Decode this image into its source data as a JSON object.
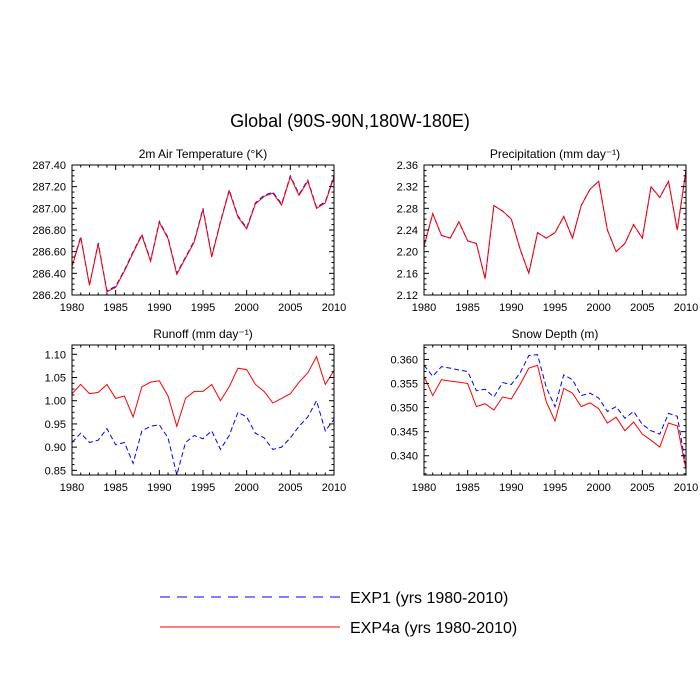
{
  "title": "Global (90S-90N,180W-180E)",
  "colors": {
    "exp1": "#0000ff",
    "exp4a": "#ff0000",
    "axis": "#000000"
  },
  "legend": {
    "items": [
      {
        "label": "EXP1 (yrs 1980-2010)",
        "style": "dashed",
        "color": "#0000ff"
      },
      {
        "label": "EXP4a (yrs 1980-2010)",
        "style": "solid",
        "color": "#ff0000"
      }
    ]
  },
  "chart_data": [
    {
      "type": "line",
      "title": "2m Air Temperature (°K)",
      "x": [
        1980,
        1981,
        1982,
        1983,
        1984,
        1985,
        1986,
        1987,
        1988,
        1989,
        1990,
        1991,
        1992,
        1993,
        1994,
        1995,
        1996,
        1997,
        1998,
        1999,
        2000,
        2001,
        2002,
        2003,
        2004,
        2005,
        2006,
        2007,
        2008,
        2009,
        2010
      ],
      "xlim": [
        1980,
        2010
      ],
      "xticks": [
        "1980",
        "1985",
        "1990",
        "1995",
        "2000",
        "2005",
        "2010"
      ],
      "ylim": [
        286.2,
        287.4
      ],
      "yticks": [
        "286.20",
        "286.40",
        "286.60",
        "286.80",
        "287.00",
        "287.20",
        "287.40"
      ],
      "series": [
        {
          "name": "EXP1 (yrs 1980-2010)",
          "style": "dashed",
          "values": [
            286.47,
            286.74,
            286.29,
            286.68,
            286.24,
            286.28,
            286.43,
            286.6,
            286.76,
            286.52,
            286.88,
            286.73,
            286.4,
            286.55,
            286.7,
            287.0,
            286.56,
            286.88,
            287.17,
            286.93,
            286.82,
            287.05,
            287.12,
            287.15,
            287.04,
            287.3,
            287.13,
            287.26,
            287.01,
            287.06,
            287.3
          ]
        },
        {
          "name": "EXP4a (yrs 1980-2010)",
          "style": "solid",
          "values": [
            286.46,
            286.73,
            286.29,
            286.67,
            286.23,
            286.27,
            286.42,
            286.59,
            286.75,
            286.51,
            286.87,
            286.72,
            286.39,
            286.54,
            286.69,
            286.99,
            286.55,
            286.87,
            287.16,
            286.92,
            286.81,
            287.04,
            287.11,
            287.14,
            287.03,
            287.29,
            287.12,
            287.25,
            287.0,
            287.05,
            287.29
          ]
        }
      ]
    },
    {
      "type": "line",
      "title": "Precipitation (mm day⁻¹)",
      "x": [
        1980,
        1981,
        1982,
        1983,
        1984,
        1985,
        1986,
        1987,
        1988,
        1989,
        1990,
        1991,
        1992,
        1993,
        1994,
        1995,
        1996,
        1997,
        1998,
        1999,
        2000,
        2001,
        2002,
        2003,
        2004,
        2005,
        2006,
        2007,
        2008,
        2009,
        2010
      ],
      "xlim": [
        1980,
        2010
      ],
      "xticks": [
        "1980",
        "1985",
        "1990",
        "1995",
        "2000",
        "2005",
        "2010"
      ],
      "ylim": [
        2.12,
        2.36
      ],
      "yticks": [
        "2.12",
        "2.16",
        "2.20",
        "2.24",
        "2.28",
        "2.32",
        "2.36"
      ],
      "series": [
        {
          "name": "EXP1 (yrs 1980-2010)",
          "style": "dashed",
          "values": [
            2.21,
            2.27,
            2.23,
            2.225,
            2.255,
            2.22,
            2.215,
            2.15,
            2.285,
            2.275,
            2.26,
            2.205,
            2.16,
            2.235,
            2.225,
            2.235,
            2.265,
            2.225,
            2.285,
            2.315,
            2.33,
            2.24,
            2.2,
            2.215,
            2.25,
            2.225,
            2.32,
            2.3,
            2.33,
            2.24,
            2.35
          ]
        },
        {
          "name": "EXP4a (yrs 1980-2010)",
          "style": "solid",
          "values": [
            2.21,
            2.27,
            2.23,
            2.225,
            2.255,
            2.22,
            2.215,
            2.15,
            2.285,
            2.275,
            2.26,
            2.205,
            2.16,
            2.235,
            2.225,
            2.235,
            2.265,
            2.225,
            2.285,
            2.315,
            2.33,
            2.24,
            2.2,
            2.215,
            2.25,
            2.225,
            2.32,
            2.3,
            2.33,
            2.24,
            2.35
          ]
        }
      ]
    },
    {
      "type": "line",
      "title": "Runoff (mm day⁻¹)",
      "x": [
        1980,
        1981,
        1982,
        1983,
        1984,
        1985,
        1986,
        1987,
        1988,
        1989,
        1990,
        1991,
        1992,
        1993,
        1994,
        1995,
        1996,
        1997,
        1998,
        1999,
        2000,
        2001,
        2002,
        2003,
        2004,
        2005,
        2006,
        2007,
        2008,
        2009,
        2010
      ],
      "xlim": [
        1980,
        2010
      ],
      "xticks": [
        "1980",
        "1985",
        "1990",
        "1995",
        "2000",
        "2005",
        "2010"
      ],
      "ylim": [
        0.84,
        1.12
      ],
      "yticks": [
        "0.85",
        "0.90",
        "0.95",
        "1.00",
        "1.05",
        "1.10"
      ],
      "series": [
        {
          "name": "EXP1 (yrs 1980-2010)",
          "style": "dashed",
          "values": [
            0.91,
            0.93,
            0.91,
            0.915,
            0.94,
            0.905,
            0.91,
            0.865,
            0.935,
            0.945,
            0.948,
            0.92,
            0.84,
            0.91,
            0.925,
            0.918,
            0.935,
            0.895,
            0.925,
            0.975,
            0.965,
            0.93,
            0.92,
            0.895,
            0.9,
            0.92,
            0.945,
            0.965,
            1.0,
            0.935,
            0.96
          ]
        },
        {
          "name": "EXP4a (yrs 1980-2010)",
          "style": "solid",
          "values": [
            1.015,
            1.035,
            1.015,
            1.018,
            1.035,
            1.005,
            1.01,
            0.965,
            1.03,
            1.04,
            1.043,
            1.01,
            0.945,
            1.005,
            1.02,
            1.02,
            1.035,
            1.0,
            1.03,
            1.07,
            1.067,
            1.035,
            1.02,
            0.995,
            1.005,
            1.015,
            1.04,
            1.06,
            1.095,
            1.035,
            1.065
          ]
        }
      ]
    },
    {
      "type": "line",
      "title": "Snow Depth (m)",
      "x": [
        1980,
        1981,
        1982,
        1983,
        1984,
        1985,
        1986,
        1987,
        1988,
        1989,
        1990,
        1991,
        1992,
        1993,
        1994,
        1995,
        1996,
        1997,
        1998,
        1999,
        2000,
        2001,
        2002,
        2003,
        2004,
        2005,
        2006,
        2007,
        2008,
        2009,
        2010
      ],
      "xlim": [
        1980,
        2010
      ],
      "xticks": [
        "1980",
        "1985",
        "1990",
        "1995",
        "2000",
        "2005",
        "2010"
      ],
      "ylim": [
        0.336,
        0.363
      ],
      "yticks": [
        "0.340",
        "0.345",
        "0.350",
        "0.355",
        "0.360"
      ],
      "series": [
        {
          "name": "EXP1 (yrs 1980-2010)",
          "style": "dashed",
          "values": [
            0.3588,
            0.3565,
            0.3585,
            0.3582,
            0.3578,
            0.3575,
            0.3535,
            0.3538,
            0.3522,
            0.3552,
            0.3548,
            0.3572,
            0.3608,
            0.361,
            0.3542,
            0.3502,
            0.3568,
            0.3558,
            0.3525,
            0.353,
            0.352,
            0.3492,
            0.3502,
            0.3478,
            0.3492,
            0.3465,
            0.3452,
            0.3445,
            0.3488,
            0.3482,
            0.3378
          ]
        },
        {
          "name": "EXP4a (yrs 1980-2010)",
          "style": "solid",
          "values": [
            0.3565,
            0.3525,
            0.3558,
            0.3555,
            0.3553,
            0.355,
            0.3502,
            0.3508,
            0.3495,
            0.3522,
            0.3518,
            0.3548,
            0.3582,
            0.3588,
            0.3512,
            0.3472,
            0.354,
            0.353,
            0.3502,
            0.351,
            0.3498,
            0.3468,
            0.348,
            0.3452,
            0.347,
            0.3445,
            0.3432,
            0.3418,
            0.3468,
            0.3462,
            0.3372
          ]
        }
      ]
    }
  ]
}
